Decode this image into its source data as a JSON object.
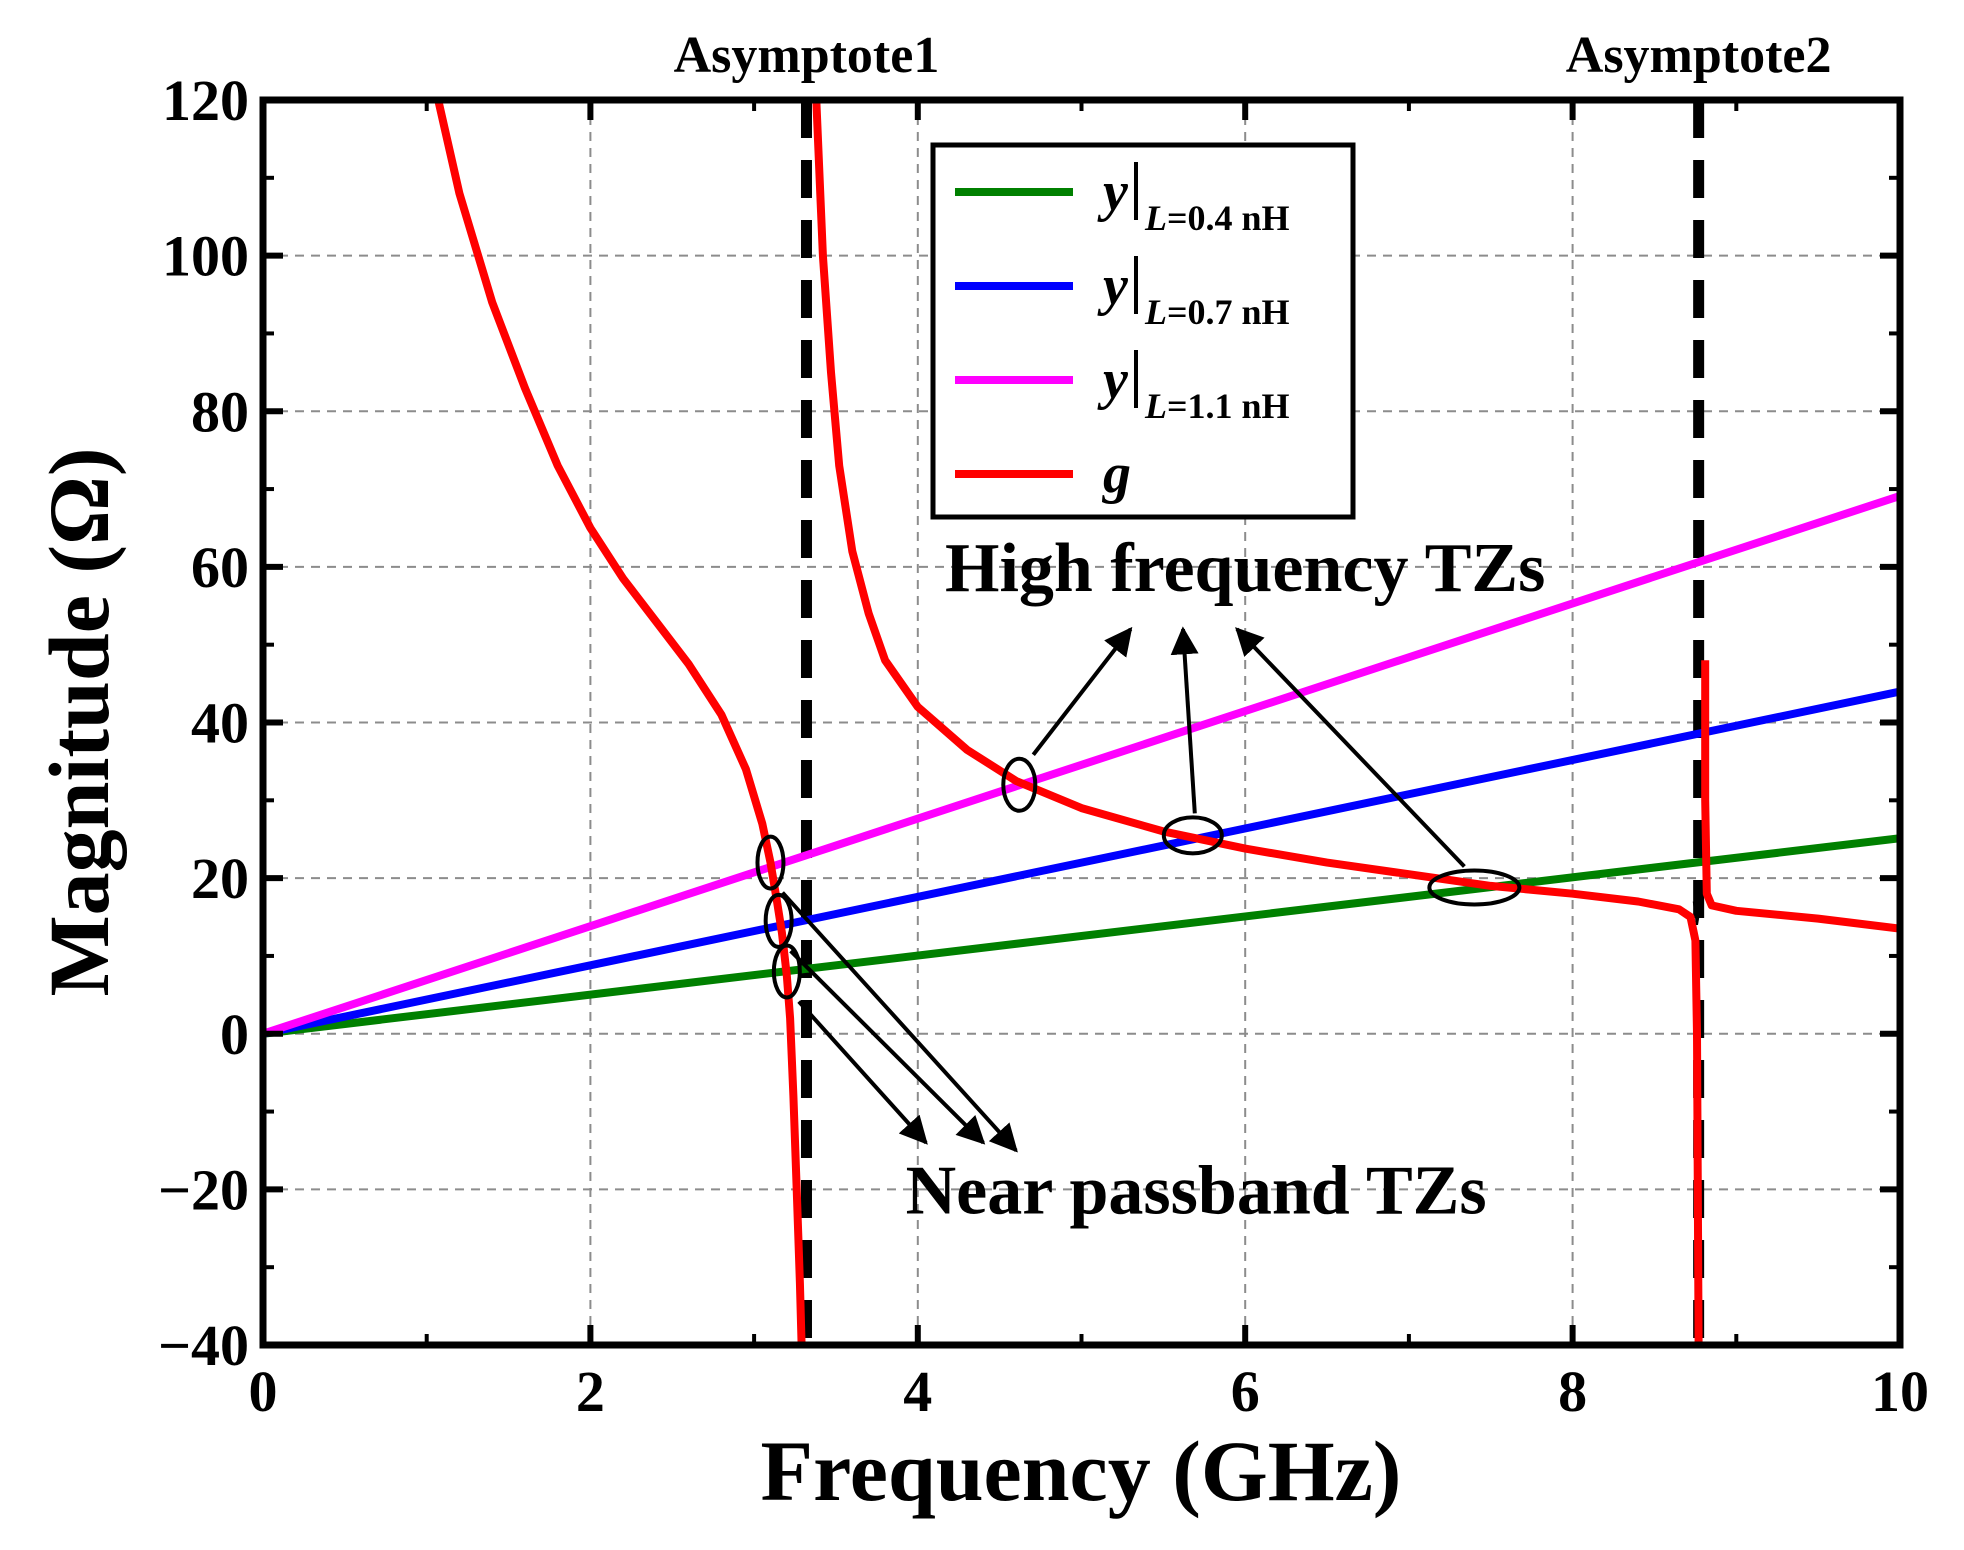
{
  "chart_data": {
    "type": "line",
    "title": "",
    "xlabel": "Frequency (GHz)",
    "ylabel": "Magnitude (Ω)",
    "xlim": [
      0,
      10
    ],
    "ylim": [
      -40,
      120
    ],
    "x_ticks": [
      0,
      2,
      4,
      6,
      8,
      10
    ],
    "y_ticks": [
      -40,
      -20,
      0,
      20,
      40,
      60,
      80,
      100,
      120
    ],
    "x_tick_labels": [
      "0",
      "2",
      "4",
      "6",
      "8",
      "10"
    ],
    "y_tick_labels": [
      "−40",
      "−20",
      "0",
      "20",
      "40",
      "60",
      "80",
      "100",
      "120"
    ],
    "grid": true,
    "legend_position": "top-center",
    "series": [
      {
        "id": "y04",
        "name": "y",
        "subscript": "L=0.4 nH",
        "color": "#008000",
        "kind": "linear",
        "slope": 2.513
      },
      {
        "id": "y07",
        "name": "y",
        "subscript": "L=0.7 nH",
        "color": "#0000ff",
        "kind": "linear",
        "slope": 4.398
      },
      {
        "id": "y11",
        "name": "y",
        "subscript": "L=1.1 nH",
        "color": "#ff00ff",
        "kind": "linear",
        "slope": 6.912
      },
      {
        "id": "g",
        "name": "g",
        "subscript": "",
        "color": "#ff0000",
        "kind": "curve",
        "branches": [
          [
            [
              1.07,
              120
            ],
            [
              1.2,
              108
            ],
            [
              1.4,
              94
            ],
            [
              1.6,
              83
            ],
            [
              1.8,
              73
            ],
            [
              2.0,
              65
            ],
            [
              2.2,
              58.5
            ],
            [
              2.4,
              53
            ],
            [
              2.6,
              47.5
            ],
            [
              2.8,
              41
            ],
            [
              2.95,
              34
            ],
            [
              3.05,
              27
            ],
            [
              3.1,
              22
            ],
            [
              3.14,
              17
            ],
            [
              3.17,
              13
            ],
            [
              3.2,
              7.5
            ],
            [
              3.22,
              2
            ],
            [
              3.24,
              -8
            ],
            [
              3.26,
              -20
            ],
            [
              3.28,
              -32
            ],
            [
              3.29,
              -40
            ]
          ],
          [
            [
              3.38,
              120
            ],
            [
              3.42,
              100
            ],
            [
              3.47,
              85
            ],
            [
              3.52,
              73
            ],
            [
              3.6,
              62
            ],
            [
              3.7,
              54
            ],
            [
              3.8,
              48
            ],
            [
              4.0,
              42
            ],
            [
              4.3,
              36.5
            ],
            [
              4.6,
              32.5
            ],
            [
              5.0,
              29
            ],
            [
              5.5,
              26
            ],
            [
              6.0,
              23.8
            ],
            [
              6.5,
              22
            ],
            [
              7.0,
              20.5
            ],
            [
              7.5,
              19
            ],
            [
              8.0,
              18
            ],
            [
              8.4,
              17
            ],
            [
              8.65,
              16
            ],
            [
              8.72,
              15
            ],
            [
              8.75,
              12
            ],
            [
              8.76,
              0
            ],
            [
              8.77,
              -40
            ]
          ],
          [
            [
              8.81,
              48
            ],
            [
              8.81,
              30
            ],
            [
              8.82,
              18
            ],
            [
              8.85,
              16.5
            ],
            [
              9.0,
              15.8
            ],
            [
              9.5,
              14.8
            ],
            [
              10.0,
              13.5
            ]
          ]
        ]
      }
    ],
    "asymptotes": [
      {
        "label": "Asymptote1",
        "x": 3.32
      },
      {
        "label": "Asymptote2",
        "x": 8.77
      }
    ],
    "annotations": {
      "high": {
        "text": "High frequency TZs",
        "anchor_x": 6.0,
        "anchor_y": 60
      },
      "near": {
        "text": "Near passband TZs",
        "anchor_x": 5.7,
        "anchor_y": -20
      }
    },
    "tz_markers": {
      "high": [
        {
          "x": 4.62,
          "y": 32,
          "text_point": [
            5.3,
            52
          ]
        },
        {
          "x": 5.68,
          "y": 25.5,
          "text_point": [
            5.62,
            52
          ]
        },
        {
          "x": 7.4,
          "y": 18.8,
          "text_point": [
            5.95,
            52
          ]
        }
      ],
      "near": [
        {
          "x": 3.1,
          "y": 22,
          "text_point": [
            4.6,
            -15
          ]
        },
        {
          "x": 3.15,
          "y": 14.5,
          "text_point": [
            4.4,
            -14
          ]
        },
        {
          "x": 3.2,
          "y": 8,
          "text_point": [
            4.05,
            -14
          ]
        }
      ]
    }
  }
}
